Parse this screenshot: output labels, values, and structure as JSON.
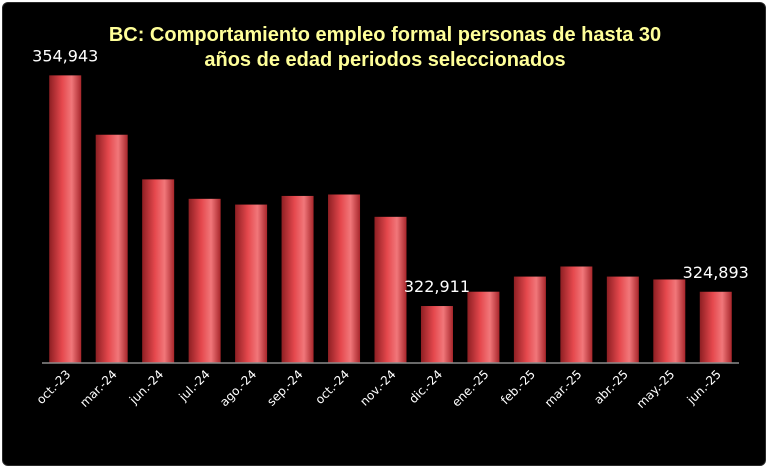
{
  "chart_data": {
    "type": "bar",
    "title_lines": [
      "BC: Comportamiento empleo formal personas de hasta 30",
      "años de edad periodos seleccionados"
    ],
    "categories": [
      "oct.-23",
      "mar.-24",
      "jun.-24",
      "jul.-24",
      "ago.-24",
      "sep.-24",
      "oct.-24",
      "nov.-24",
      "dic.-24",
      "ene.-25",
      "feb.-25",
      "mar.-25",
      "abr.-25",
      "may.-25",
      "jun.-25"
    ],
    "values": [
      354943,
      346700,
      340500,
      337800,
      337000,
      338200,
      338400,
      335300,
      322911,
      324900,
      327000,
      328400,
      327000,
      326600,
      324893
    ],
    "data_labels": [
      {
        "index": 0,
        "text": "354,943"
      },
      {
        "index": 8,
        "text": "322,911"
      },
      {
        "index": 14,
        "text": "324,893"
      }
    ],
    "ylim": [
      315000,
      356800
    ],
    "grid": false,
    "legend": "none",
    "colors": {
      "background": "#000000",
      "bar_dark": "#8e1f23",
      "bar_mid": "#e5484d",
      "bar_light": "#f1777a",
      "title": "#ffff99",
      "text": "#ffffff",
      "axis": "#8c8c8c"
    }
  }
}
